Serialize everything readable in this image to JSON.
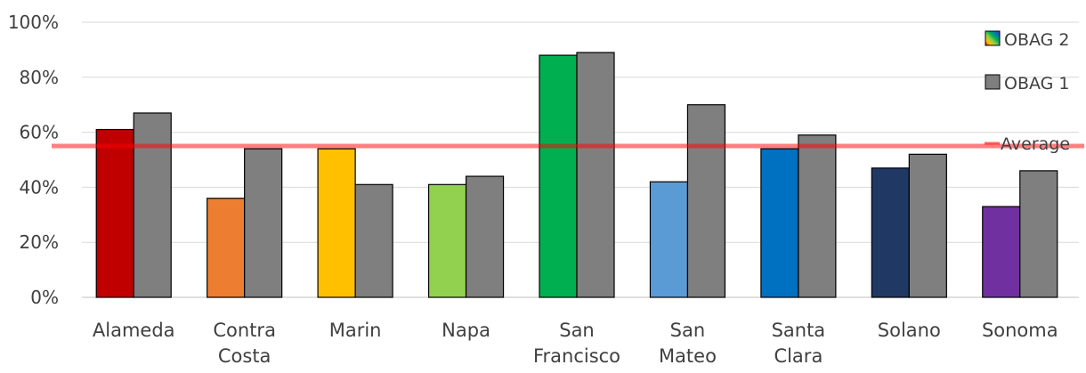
{
  "chart_data": {
    "type": "bar",
    "categories": [
      [
        "Alameda"
      ],
      [
        "Contra",
        "Costa"
      ],
      [
        "Marin"
      ],
      [
        "Napa"
      ],
      [
        "San",
        "Francisco"
      ],
      [
        "San",
        "Mateo"
      ],
      [
        "Santa",
        "Clara"
      ],
      [
        "Solano"
      ],
      [
        "Sonoma"
      ]
    ],
    "series": [
      {
        "name": "OBAG 2",
        "values": [
          61,
          36,
          54,
          41,
          88,
          42,
          54,
          47,
          33
        ],
        "colors": [
          "#c00000",
          "#ed7d31",
          "#ffc000",
          "#92d050",
          "#00b050",
          "#5b9bd5",
          "#0070c0",
          "#203864",
          "#7030a0"
        ]
      },
      {
        "name": "OBAG 1",
        "values": [
          67,
          54,
          41,
          44,
          89,
          70,
          59,
          52,
          46
        ],
        "color": "#7f7f7f"
      }
    ],
    "average": {
      "name": "Average",
      "value": 55,
      "color": "#ff0000"
    },
    "ylim": [
      0,
      100
    ],
    "yticks": [
      "0%",
      "20%",
      "40%",
      "60%",
      "80%",
      "100%"
    ],
    "ytick_values": [
      0,
      20,
      40,
      60,
      80,
      100
    ],
    "grid": true,
    "legend_position": "right"
  }
}
